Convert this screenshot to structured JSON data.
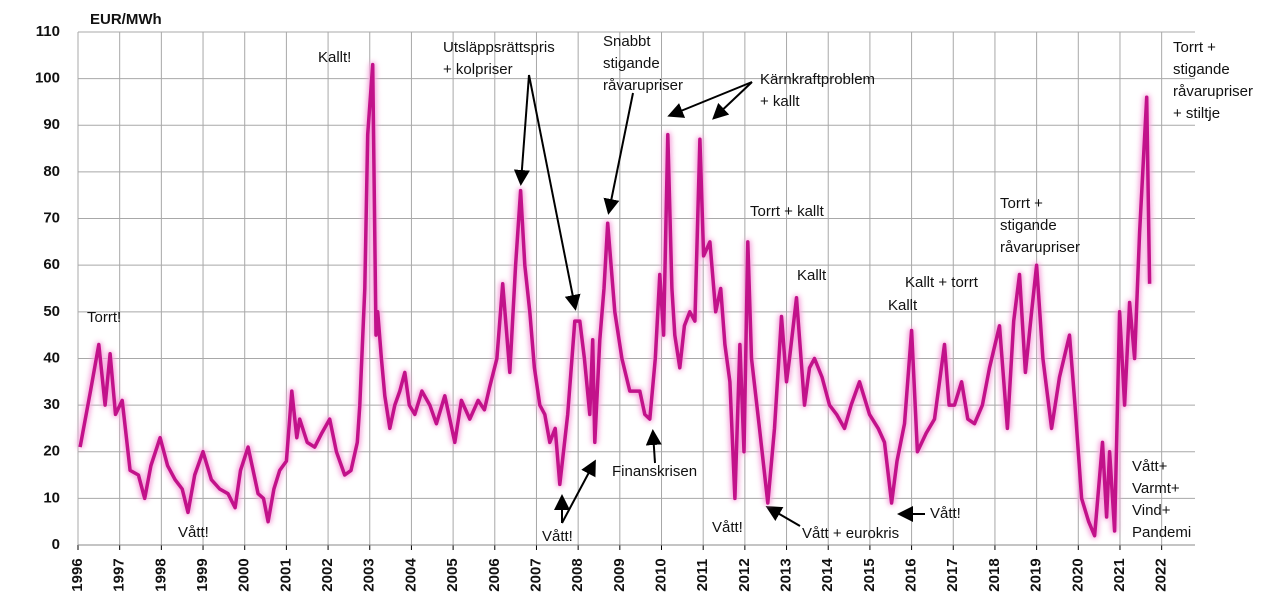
{
  "chart_data": {
    "type": "line",
    "y_label": "EUR/MWh",
    "series": [
      {
        "color": "#c2128a",
        "x": [
          1996.05,
          1996.3,
          1996.5,
          1996.65,
          1996.77,
          1996.9,
          1997.06,
          1997.25,
          1997.45,
          1997.6,
          1997.75,
          1997.97,
          1998.15,
          1998.33,
          1998.5,
          1998.64,
          1998.8,
          1999.0,
          1999.2,
          1999.4,
          1999.6,
          1999.77,
          1999.9,
          2000.08,
          2000.2,
          2000.32,
          2000.45,
          2000.56,
          2000.7,
          2000.84,
          2001.0,
          2001.13,
          2001.25,
          2001.32,
          2001.5,
          2001.68,
          2001.85,
          2002.04,
          2002.2,
          2002.4,
          2002.55,
          2002.7,
          2002.76,
          2002.88,
          2002.95,
          2003.07,
          2003.15,
          2003.19,
          2003.28,
          2003.36,
          2003.48,
          2003.6,
          2003.72,
          2003.84,
          2003.95,
          2004.08,
          2004.25,
          2004.44,
          2004.6,
          2004.8,
          2005.04,
          2005.2,
          2005.4,
          2005.6,
          2005.75,
          2005.88,
          2006.05,
          2006.19,
          2006.36,
          2006.5,
          2006.62,
          2006.72,
          2006.84,
          2006.95,
          2007.08,
          2007.2,
          2007.32,
          2007.45,
          2007.56,
          2007.75,
          2007.92,
          2008.04,
          2008.15,
          2008.28,
          2008.35,
          2008.4,
          2008.52,
          2008.62,
          2008.71,
          2008.88,
          2009.05,
          2009.24,
          2009.48,
          2009.6,
          2009.72,
          2009.85,
          2009.96,
          2010.05,
          2010.15,
          2010.25,
          2010.32,
          2010.44,
          2010.55,
          2010.68,
          2010.8,
          2010.92,
          2011.01,
          2011.16,
          2011.3,
          2011.42,
          2011.52,
          2011.64,
          2011.76,
          2011.88,
          2011.98,
          2012.07,
          2012.16,
          2012.35,
          2012.55,
          2012.71,
          2012.88,
          2013.0,
          2013.07,
          2013.24,
          2013.43,
          2013.55,
          2013.67,
          2013.85,
          2014.03,
          2014.2,
          2014.39,
          2014.55,
          2014.75,
          2014.99,
          2015.2,
          2015.35,
          2015.52,
          2015.65,
          2015.83,
          2016.0,
          2016.14,
          2016.35,
          2016.55,
          2016.79,
          2016.9,
          2017.03,
          2017.2,
          2017.35,
          2017.51,
          2017.7,
          2017.87,
          2018.11,
          2018.3,
          2018.45,
          2018.59,
          2018.73,
          2018.88,
          2019.0,
          2019.15,
          2019.36,
          2019.55,
          2019.79,
          2019.92,
          2020.08,
          2020.25,
          2020.39,
          2020.58,
          2020.68,
          2020.75,
          2020.87,
          2020.99,
          2021.11,
          2021.23,
          2021.35,
          2021.47,
          2021.64,
          2021.71
        ],
        "values": [
          21,
          33,
          43,
          30,
          41,
          28,
          31,
          16,
          15,
          10,
          17,
          23,
          17,
          14,
          12,
          7,
          15,
          20,
          14,
          12,
          11,
          8,
          16,
          21,
          16,
          11,
          10,
          5,
          12,
          16,
          18,
          33,
          23,
          27,
          22,
          21,
          24,
          27,
          20,
          15,
          16,
          22,
          30,
          55,
          88,
          103,
          45,
          50,
          40,
          32,
          25,
          30,
          33,
          37,
          30,
          28,
          33,
          30,
          26,
          32,
          22,
          31,
          27,
          31,
          29,
          34,
          40,
          56,
          37,
          60,
          76,
          60,
          50,
          38,
          30,
          28,
          22,
          25,
          13,
          28,
          48,
          48,
          40,
          28,
          44,
          22,
          44,
          55,
          69,
          50,
          40,
          33,
          33,
          28,
          27,
          40,
          58,
          45,
          88,
          55,
          45,
          38,
          47,
          50,
          48,
          87,
          62,
          65,
          50,
          55,
          43,
          35,
          10,
          43,
          20,
          65,
          40,
          25,
          9,
          25,
          49,
          35,
          40,
          53,
          30,
          38,
          40,
          36,
          30,
          28,
          25,
          30,
          35,
          28,
          25,
          22,
          9,
          18,
          26,
          46,
          20,
          24,
          27,
          43,
          30,
          30,
          35,
          27,
          26,
          30,
          38,
          47,
          25,
          48,
          58,
          37,
          50,
          60,
          40,
          25,
          36,
          45,
          30,
          10,
          5,
          2,
          22,
          6,
          20,
          3,
          50,
          30,
          52,
          40,
          67,
          96,
          56
        ]
      }
    ],
    "xlim": [
      1996,
      2022.8
    ],
    "xticks": [
      1996,
      1997,
      1998,
      1999,
      2000,
      2001,
      2002,
      2003,
      2004,
      2005,
      2006,
      2007,
      2008,
      2009,
      2010,
      2011,
      2012,
      2013,
      2014,
      2015,
      2016,
      2017,
      2018,
      2019,
      2020,
      2021,
      2022
    ],
    "ylim": [
      0,
      110
    ],
    "yticks": [
      0,
      10,
      20,
      30,
      40,
      50,
      60,
      70,
      80,
      90,
      100,
      110
    ],
    "grid": true,
    "annotations": [
      [
        "Torrt!"
      ],
      [
        "Vått!"
      ],
      [
        "Kallt!"
      ],
      [
        "Utsläppsrättspris",
        "+ kolpriser"
      ],
      [
        "Snabbt",
        "stigande",
        "råvarupriser"
      ],
      [
        "Kärnkraftproblem",
        "+ kallt"
      ],
      [
        "Torrt + kallt"
      ],
      [
        "Kallt"
      ],
      [
        "Kallt + torrt"
      ],
      [
        "Kallt"
      ],
      [
        "Torrt +",
        "stigande",
        "råvarupriser"
      ],
      [
        "Torrt +",
        "stigande",
        "råvarupriser",
        "+ stiltje"
      ],
      [
        "Vått!"
      ],
      [
        "Finanskrisen"
      ],
      [
        "Vått!"
      ],
      [
        "Vått + eurokris"
      ],
      [
        "Vått!"
      ],
      [
        "Vått+",
        "Varmt+",
        "Vind+",
        "Pandemi"
      ]
    ]
  }
}
